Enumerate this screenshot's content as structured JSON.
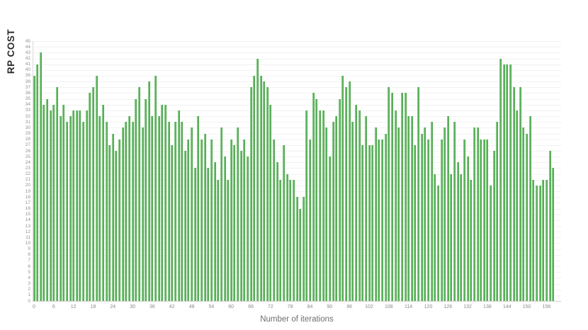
{
  "page": {
    "background": "#ffffff"
  },
  "chart_data": {
    "type": "bar",
    "title": "",
    "xlabel": "Number of iterations",
    "ylabel": "RP COST",
    "x_is_index": true,
    "x_range": [
      0,
      158
    ],
    "values": [
      39,
      41,
      43,
      34,
      35,
      33,
      34,
      37,
      32,
      34,
      31,
      32,
      33,
      33,
      33,
      31,
      33,
      36,
      37,
      39,
      32,
      34,
      31,
      27,
      29,
      26,
      28,
      30,
      31,
      32,
      31,
      35,
      37,
      30,
      35,
      38,
      32,
      39,
      32,
      34,
      34,
      31,
      27,
      31,
      33,
      31,
      26,
      28,
      30,
      23,
      32,
      28,
      29,
      23,
      28,
      24,
      21,
      30,
      25,
      21,
      28,
      27,
      30,
      26,
      28,
      25,
      37,
      39,
      42,
      39,
      38,
      37,
      34,
      28,
      24,
      21,
      27,
      22,
      21,
      21,
      18,
      16,
      18,
      33,
      28,
      36,
      35,
      33,
      33,
      30,
      25,
      31,
      32,
      35,
      39,
      37,
      38,
      31,
      34,
      33,
      27,
      32,
      27,
      27,
      30,
      28,
      28,
      29,
      37,
      36,
      33,
      30,
      36,
      36,
      32,
      32,
      27,
      37,
      29,
      30,
      28,
      31,
      22,
      20,
      28,
      30,
      32,
      22,
      31,
      24,
      22,
      28,
      25,
      21,
      30,
      30,
      28,
      28,
      28,
      20,
      26,
      31,
      42,
      41,
      41,
      41,
      37,
      33,
      37,
      30,
      29,
      32,
      21,
      20,
      20,
      21,
      21,
      26,
      23
    ],
    "ylim": [
      0,
      45
    ],
    "y_tick_interval": 1,
    "x_tick_interval": 6,
    "x_tick_max": 156,
    "grid": "horizontal every 1 unit, faint",
    "legend": "none",
    "bar_color": "#4aa74a",
    "tick_label_color": "#8b8b8b"
  }
}
